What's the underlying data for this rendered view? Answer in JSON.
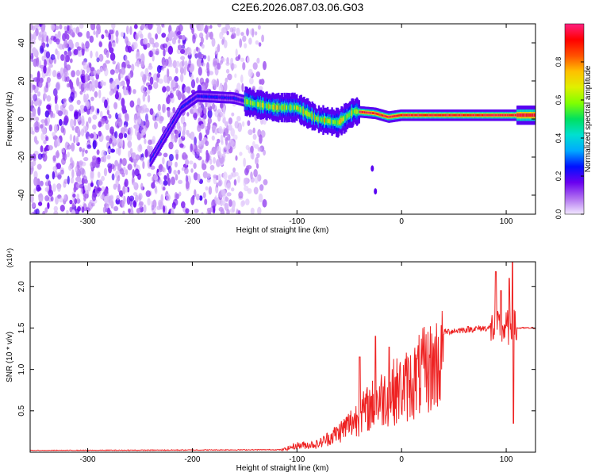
{
  "title": "C2E6.2026.087.03.06.G03",
  "chart_data": [
    {
      "type": "heatmap",
      "title": "C2E6.2026.087.03.06.G03",
      "xlabel": "Height of straight line (km)",
      "ylabel": "Frequency (Hz)",
      "xlim": [
        -355,
        128
      ],
      "ylim": [
        -50,
        50
      ],
      "xticks": [
        -300,
        -200,
        -100,
        0,
        100
      ],
      "yticks": [
        -40,
        -20,
        0,
        20,
        40
      ],
      "colorbar": {
        "label": "Normalized spectral amplitude",
        "range": [
          0,
          1
        ],
        "ticks": [
          0.0,
          0.2,
          0.4,
          0.6,
          0.8
        ],
        "colormap": [
          "#f2e8ff",
          "#b070f0",
          "#6a00f0",
          "#0010ff",
          "#00aaff",
          "#00e0d0",
          "#00e060",
          "#80ff00",
          "#e0f000",
          "#ffc000",
          "#ff5000",
          "#ff0000",
          "#ff2080"
        ]
      },
      "features": {
        "noise_region_x": [
          -355,
          -145
        ],
        "trace": [
          [
            -240,
            -22
          ],
          [
            -225,
            -8
          ],
          [
            -210,
            6
          ],
          [
            -195,
            12
          ],
          [
            -160,
            11
          ],
          [
            -140,
            8
          ],
          [
            -120,
            6
          ],
          [
            -100,
            6
          ],
          [
            -80,
            0
          ],
          [
            -60,
            -2
          ],
          [
            -45,
            4
          ],
          [
            -25,
            3
          ],
          [
            -12,
            1
          ],
          [
            0,
            2
          ],
          [
            40,
            2
          ],
          [
            80,
            2
          ],
          [
            100,
            2
          ],
          [
            128,
            2
          ]
        ],
        "isolated_points": [
          [
            -28,
            -26
          ],
          [
            -25,
            -38
          ]
        ]
      }
    },
    {
      "type": "line",
      "xlabel": "Height of straight line (km)",
      "ylabel": "SNR (10 * v/v)",
      "y_multiplier": "(x10⁴)",
      "xlim": [
        -355,
        128
      ],
      "ylim": [
        0,
        2.3
      ],
      "xticks": [
        -300,
        -200,
        -100,
        0,
        100
      ],
      "yticks": [
        0.5,
        1.0,
        1.5,
        2.0
      ],
      "color": "#ee2222",
      "envelope": [
        [
          -355,
          0.02
        ],
        [
          -115,
          0.03
        ],
        [
          -100,
          0.1
        ],
        [
          -80,
          0.12
        ],
        [
          -60,
          0.3
        ],
        [
          -40,
          0.55
        ],
        [
          -25,
          0.75
        ],
        [
          -10,
          0.9
        ],
        [
          0,
          0.95
        ],
        [
          10,
          1.05
        ],
        [
          20,
          1.2
        ],
        [
          30,
          1.3
        ],
        [
          40,
          1.45
        ],
        [
          60,
          1.48
        ],
        [
          80,
          1.5
        ],
        [
          100,
          1.5
        ],
        [
          128,
          1.5
        ]
      ],
      "spikes": [
        [
          -40,
          1.15
        ],
        [
          -25,
          1.4
        ],
        [
          -12,
          1.27
        ],
        [
          90,
          2.18
        ],
        [
          95,
          1.95
        ],
        [
          103,
          2.1
        ],
        [
          106,
          2.3
        ],
        [
          107,
          0.35
        ]
      ]
    }
  ]
}
